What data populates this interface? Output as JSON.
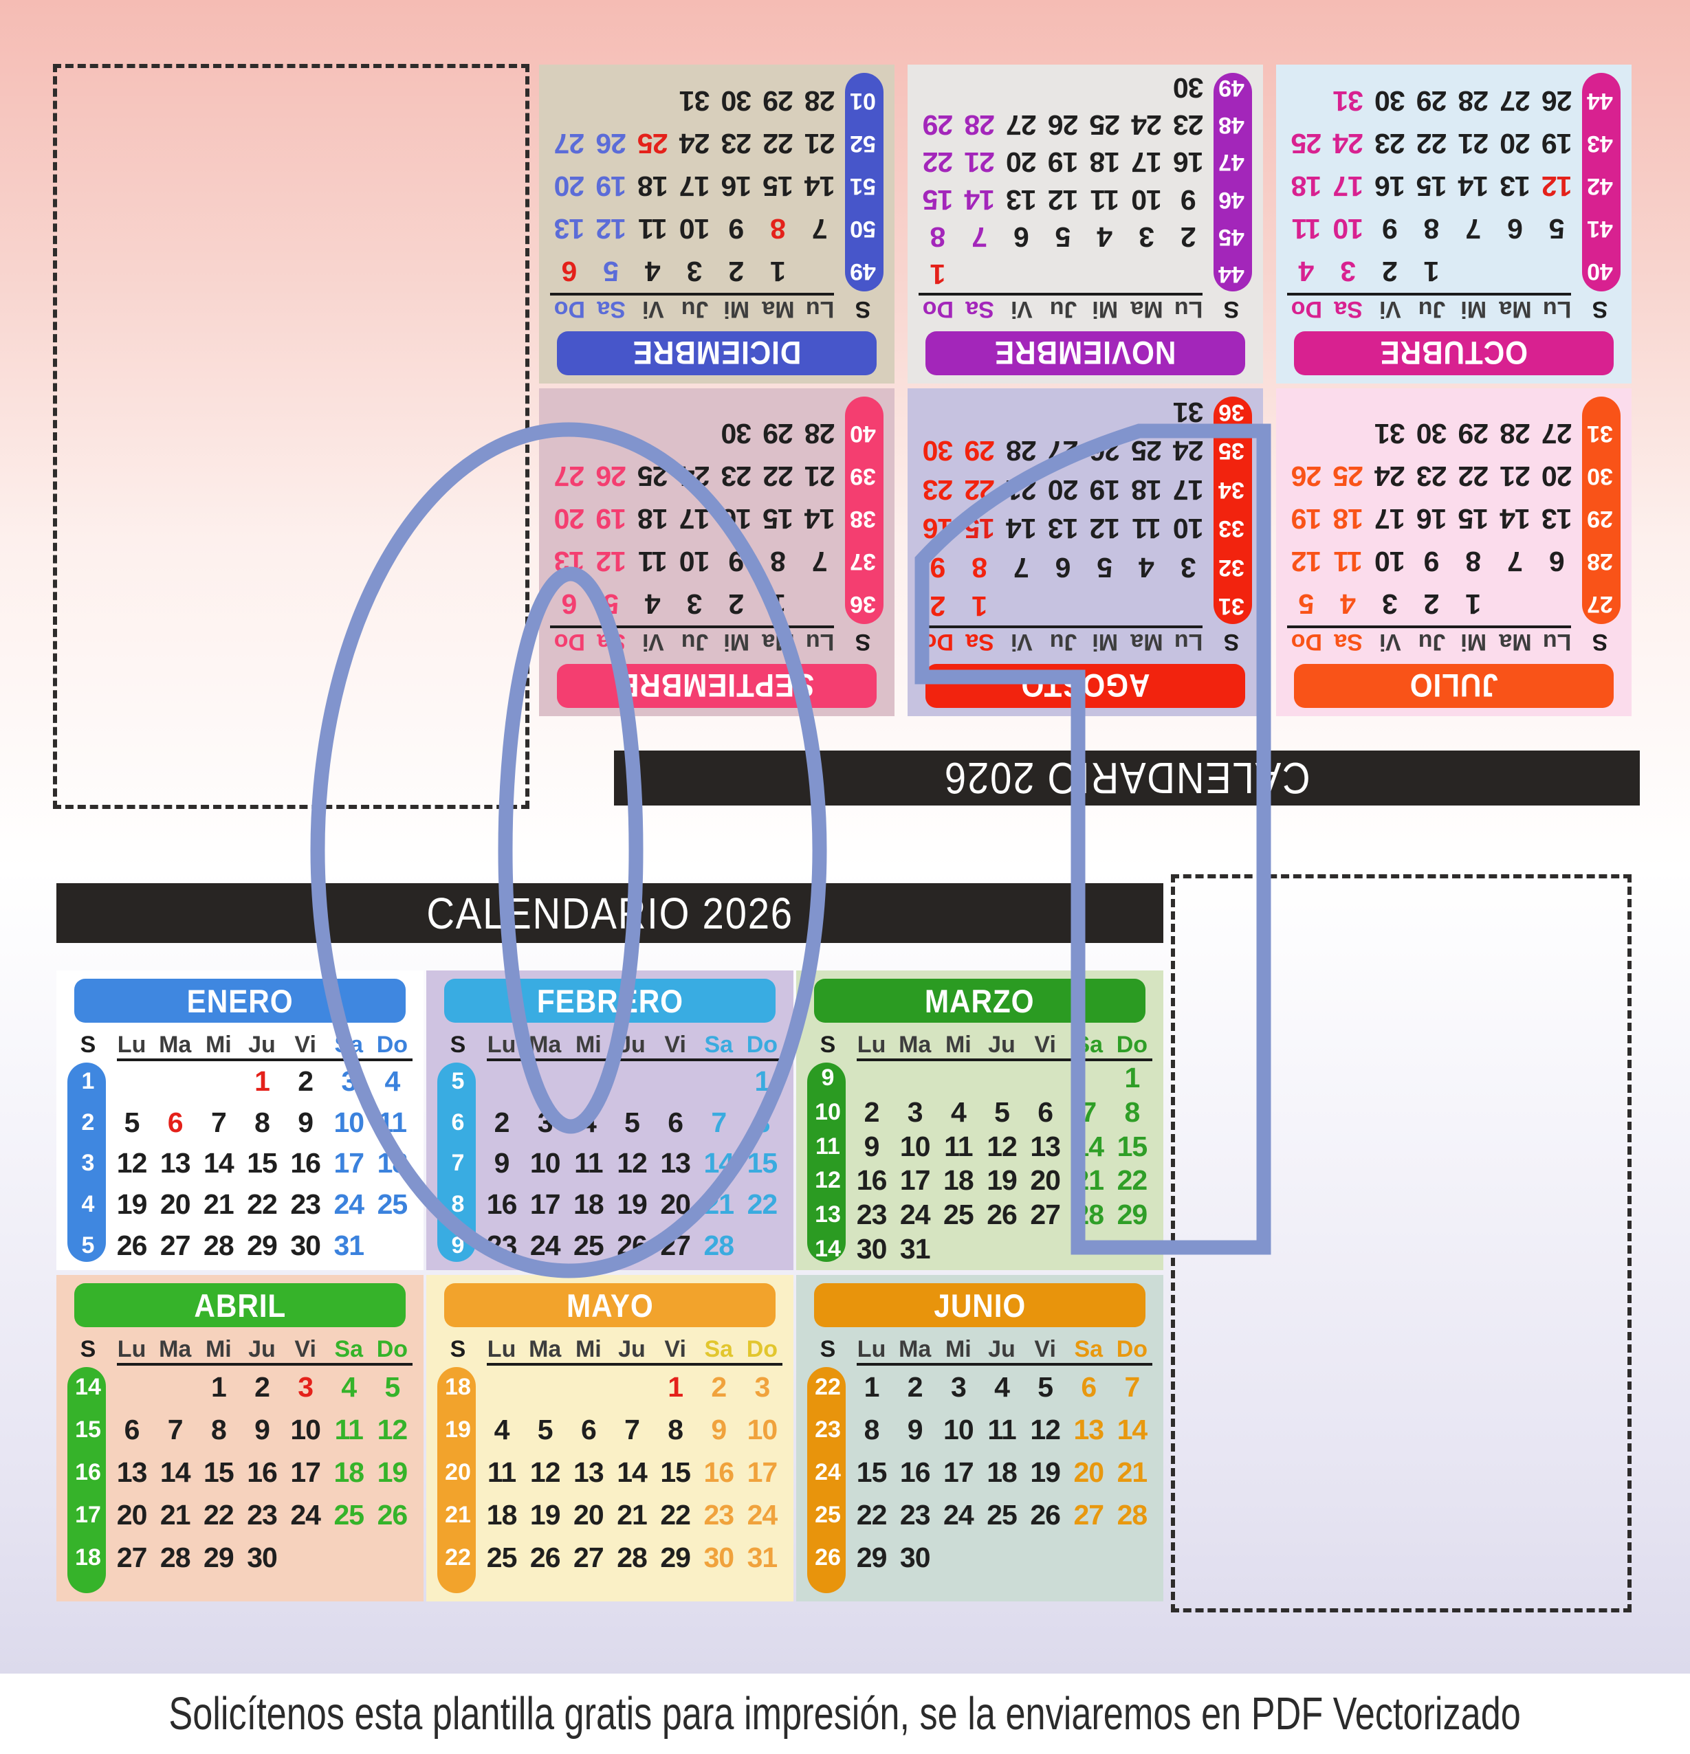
{
  "page": {
    "title_top": "CALENDARIO 2026",
    "title_bottom": "CALENDARIO 2026",
    "caption": "Solicítenos esta plantilla gratis para impresión, se la enviaremos en PDF Vectorizado"
  },
  "day_headers": [
    "S",
    "Lu",
    "Ma",
    "Mi",
    "Ju",
    "Vi",
    "Sa",
    "Do"
  ],
  "holiday_color": "#e4211a",
  "overlay": {
    "shape": "template-number-01-outline",
    "color": "#8194cd"
  },
  "months_top": [
    {
      "name": "JULIO",
      "header_color": "#f95318",
      "accent": "#f95318",
      "bg": "#fbdcec",
      "week_labels": [
        "27",
        "28",
        "29",
        "30",
        "31"
      ],
      "first_col": 2,
      "days_in_month": 31,
      "holidays": []
    },
    {
      "name": "AGOSTO",
      "header_color": "#f2230e",
      "accent": "#f2230e",
      "bg": "#c6c2e0",
      "week_labels": [
        "31",
        "32",
        "33",
        "34",
        "35",
        "36"
      ],
      "first_col": 5,
      "days_in_month": 31,
      "holidays": [
        15
      ]
    },
    {
      "name": "SEPTIEMBRE",
      "header_color": "#f43e70",
      "accent": "#f43e70",
      "bg": "#dcc0c9",
      "week_labels": [
        "36",
        "37",
        "38",
        "39",
        "40"
      ],
      "first_col": 1,
      "days_in_month": 30,
      "holidays": []
    },
    {
      "name": "OCTUBRE",
      "header_color": "#d82190",
      "accent": "#d82190",
      "bg": "#dcebf5",
      "week_labels": [
        "40",
        "41",
        "42",
        "43",
        "44"
      ],
      "first_col": 3,
      "days_in_month": 31,
      "holidays": [
        12
      ]
    },
    {
      "name": "NOVIEMBRE",
      "header_color": "#a326ba",
      "accent": "#a326ba",
      "bg": "#e8e6e4",
      "week_labels": [
        "44",
        "45",
        "46",
        "47",
        "48",
        "49"
      ],
      "first_col": 6,
      "days_in_month": 30,
      "holidays": [
        1
      ]
    },
    {
      "name": "DICIEMBRE",
      "header_color": "#4756ca",
      "accent": "#5b6cd8",
      "bg": "#d8cfbc",
      "week_labels": [
        "49",
        "50",
        "51",
        "52",
        "01"
      ],
      "first_col": 1,
      "days_in_month": 31,
      "holidays": [
        6,
        8,
        25
      ]
    }
  ],
  "months_bottom": [
    {
      "name": "ENERO",
      "header_color": "#3f87e0",
      "accent": "#3b82dd",
      "bg": "#ffffff",
      "week_labels": [
        "1",
        "2",
        "3",
        "4",
        "5"
      ],
      "first_col": 3,
      "days_in_month": 31,
      "holidays": [
        1,
        6
      ]
    },
    {
      "name": "FEBRERO",
      "header_color": "#39ace2",
      "accent": "#3aabdf",
      "bg": "#cfc3e1",
      "week_labels": [
        "5",
        "6",
        "7",
        "8",
        "9"
      ],
      "first_col": 6,
      "days_in_month": 28,
      "holidays": []
    },
    {
      "name": "MARZO",
      "header_color": "#2b9b22",
      "accent": "#2f9e27",
      "bg": "#d6e4c1",
      "week_labels": [
        "9",
        "10",
        "11",
        "12",
        "13",
        "14"
      ],
      "first_col": 6,
      "days_in_month": 31,
      "holidays": []
    },
    {
      "name": "ABRIL",
      "header_color": "#36b32a",
      "accent": "#35b32a",
      "bg": "#f6d2bd",
      "week_labels": [
        "14",
        "15",
        "16",
        "17",
        "18"
      ],
      "first_col": 2,
      "days_in_month": 30,
      "holidays": [
        3
      ]
    },
    {
      "name": "MAYO",
      "header_color": "#f2a32c",
      "accent": "#f0a23c",
      "weekend_header_color": "#e2c62e",
      "bg": "#faf0c6",
      "week_labels": [
        "18",
        "19",
        "20",
        "21",
        "22"
      ],
      "first_col": 4,
      "days_in_month": 31,
      "holidays": [
        1
      ]
    },
    {
      "name": "JUNIO",
      "header_color": "#e8940c",
      "accent": "#e8980f",
      "bg": "#ccdcd6",
      "week_labels": [
        "22",
        "23",
        "24",
        "25",
        "26"
      ],
      "first_col": 0,
      "days_in_month": 30,
      "holidays": []
    }
  ]
}
